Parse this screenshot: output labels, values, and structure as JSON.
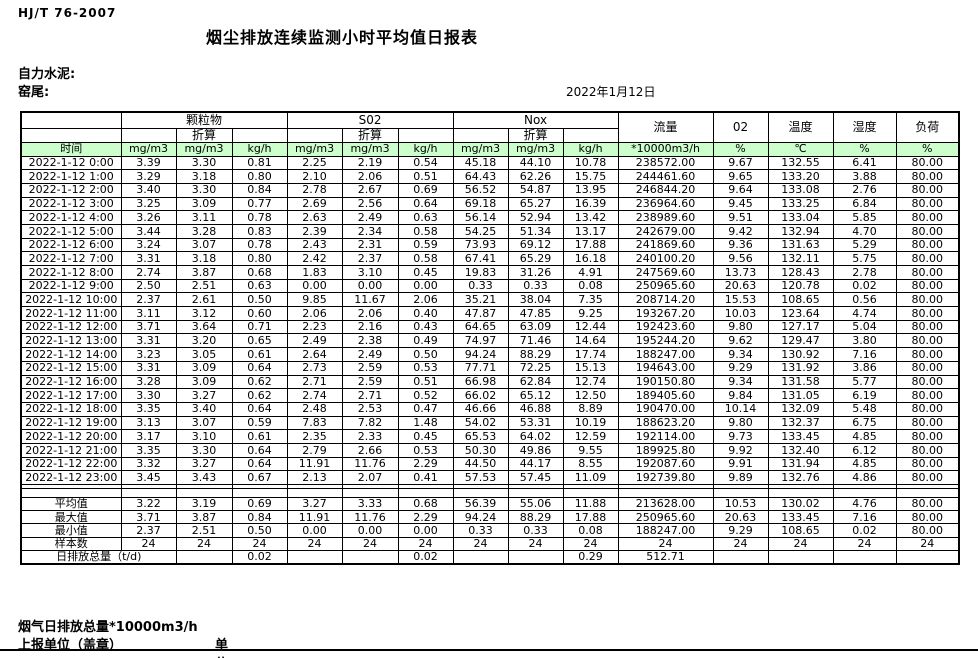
{
  "doc": {
    "standard": "HJ/T 76-2007",
    "title": "烟尘排放连续监测小时平均值日报表",
    "company": "自力水泥:",
    "location": "窑尾:",
    "date": "2022年1月12日"
  },
  "table": {
    "groups": [
      "颗粒物",
      "S02",
      "Nox"
    ],
    "conv_label": "折算",
    "time_header": "时间",
    "col_headers": {
      "flow": "流量",
      "o2": "02",
      "temp": "温度",
      "humidity": "湿度",
      "load": "负荷"
    },
    "units": [
      "mg/m3",
      "mg/m3",
      "kg/h",
      "mg/m3",
      "mg/m3",
      "kg/h",
      "mg/m3",
      "mg/m3",
      "kg/h",
      "*10000m3/h",
      "%",
      "℃",
      "%",
      "%"
    ],
    "rows": [
      {
        "time": "2022-1-12 0:00",
        "values": [
          "3.39",
          "3.30",
          "0.81",
          "2.25",
          "2.19",
          "0.54",
          "45.18",
          "44.10",
          "10.78",
          "238572.00",
          "9.67",
          "132.55",
          "6.41",
          "80.00"
        ]
      },
      {
        "time": "2022-1-12 1:00",
        "values": [
          "3.29",
          "3.18",
          "0.80",
          "2.10",
          "2.06",
          "0.51",
          "64.43",
          "62.26",
          "15.75",
          "244461.60",
          "9.65",
          "133.20",
          "3.88",
          "80.00"
        ]
      },
      {
        "time": "2022-1-12 2:00",
        "values": [
          "3.40",
          "3.30",
          "0.84",
          "2.78",
          "2.67",
          "0.69",
          "56.52",
          "54.87",
          "13.95",
          "246844.20",
          "9.64",
          "133.08",
          "2.76",
          "80.00"
        ]
      },
      {
        "time": "2022-1-12 3:00",
        "values": [
          "3.25",
          "3.09",
          "0.77",
          "2.69",
          "2.56",
          "0.64",
          "69.18",
          "65.27",
          "16.39",
          "236964.60",
          "9.45",
          "133.25",
          "6.84",
          "80.00"
        ]
      },
      {
        "time": "2022-1-12 4:00",
        "values": [
          "3.26",
          "3.11",
          "0.78",
          "2.63",
          "2.49",
          "0.63",
          "56.14",
          "52.94",
          "13.42",
          "238989.60",
          "9.51",
          "133.04",
          "5.85",
          "80.00"
        ]
      },
      {
        "time": "2022-1-12 5:00",
        "values": [
          "3.44",
          "3.28",
          "0.83",
          "2.39",
          "2.34",
          "0.58",
          "54.25",
          "51.34",
          "13.17",
          "242679.00",
          "9.42",
          "132.94",
          "4.70",
          "80.00"
        ]
      },
      {
        "time": "2022-1-12 6:00",
        "values": [
          "3.24",
          "3.07",
          "0.78",
          "2.43",
          "2.31",
          "0.59",
          "73.93",
          "69.12",
          "17.88",
          "241869.60",
          "9.36",
          "131.63",
          "5.29",
          "80.00"
        ]
      },
      {
        "time": "2022-1-12 7:00",
        "values": [
          "3.31",
          "3.18",
          "0.80",
          "2.42",
          "2.37",
          "0.58",
          "67.41",
          "65.29",
          "16.18",
          "240100.20",
          "9.56",
          "132.11",
          "5.75",
          "80.00"
        ]
      },
      {
        "time": "2022-1-12 8:00",
        "values": [
          "2.74",
          "3.87",
          "0.68",
          "1.83",
          "3.10",
          "0.45",
          "19.83",
          "31.26",
          "4.91",
          "247569.60",
          "13.73",
          "128.43",
          "2.78",
          "80.00"
        ]
      },
      {
        "time": "2022-1-12 9:00",
        "values": [
          "2.50",
          "2.51",
          "0.63",
          "0.00",
          "0.00",
          "0.00",
          "0.33",
          "0.33",
          "0.08",
          "250965.60",
          "20.63",
          "120.78",
          "0.02",
          "80.00"
        ]
      },
      {
        "time": "2022-1-12 10:00",
        "values": [
          "2.37",
          "2.61",
          "0.50",
          "9.85",
          "11.67",
          "2.06",
          "35.21",
          "38.04",
          "7.35",
          "208714.20",
          "15.53",
          "108.65",
          "0.56",
          "80.00"
        ]
      },
      {
        "time": "2022-1-12 11:00",
        "values": [
          "3.11",
          "3.12",
          "0.60",
          "2.06",
          "2.06",
          "0.40",
          "47.87",
          "47.85",
          "9.25",
          "193267.20",
          "10.03",
          "123.64",
          "4.74",
          "80.00"
        ]
      },
      {
        "time": "2022-1-12 12:00",
        "values": [
          "3.71",
          "3.64",
          "0.71",
          "2.23",
          "2.16",
          "0.43",
          "64.65",
          "63.09",
          "12.44",
          "192423.60",
          "9.80",
          "127.17",
          "5.04",
          "80.00"
        ]
      },
      {
        "time": "2022-1-12 13:00",
        "values": [
          "3.31",
          "3.20",
          "0.65",
          "2.49",
          "2.38",
          "0.49",
          "74.97",
          "71.46",
          "14.64",
          "195244.20",
          "9.62",
          "129.47",
          "3.80",
          "80.00"
        ]
      },
      {
        "time": "2022-1-12 14:00",
        "values": [
          "3.23",
          "3.05",
          "0.61",
          "2.64",
          "2.49",
          "0.50",
          "94.24",
          "88.29",
          "17.74",
          "188247.00",
          "9.34",
          "130.92",
          "7.16",
          "80.00"
        ]
      },
      {
        "time": "2022-1-12 15:00",
        "values": [
          "3.31",
          "3.09",
          "0.64",
          "2.73",
          "2.59",
          "0.53",
          "77.71",
          "72.25",
          "15.13",
          "194643.00",
          "9.29",
          "131.92",
          "3.86",
          "80.00"
        ]
      },
      {
        "time": "2022-1-12 16:00",
        "values": [
          "3.28",
          "3.09",
          "0.62",
          "2.71",
          "2.59",
          "0.51",
          "66.98",
          "62.84",
          "12.74",
          "190150.80",
          "9.34",
          "131.58",
          "5.77",
          "80.00"
        ]
      },
      {
        "time": "2022-1-12 17:00",
        "values": [
          "3.30",
          "3.27",
          "0.62",
          "2.74",
          "2.71",
          "0.52",
          "66.02",
          "65.12",
          "12.50",
          "189405.60",
          "9.84",
          "131.05",
          "6.19",
          "80.00"
        ]
      },
      {
        "time": "2022-1-12 18:00",
        "values": [
          "3.35",
          "3.40",
          "0.64",
          "2.48",
          "2.53",
          "0.47",
          "46.66",
          "46.88",
          "8.89",
          "190470.00",
          "10.14",
          "132.09",
          "5.48",
          "80.00"
        ]
      },
      {
        "time": "2022-1-12 19:00",
        "values": [
          "3.13",
          "3.07",
          "0.59",
          "7.83",
          "7.82",
          "1.48",
          "54.02",
          "53.31",
          "10.19",
          "188623.20",
          "9.80",
          "132.37",
          "6.75",
          "80.00"
        ]
      },
      {
        "time": "2022-1-12 20:00",
        "values": [
          "3.17",
          "3.10",
          "0.61",
          "2.35",
          "2.33",
          "0.45",
          "65.53",
          "64.02",
          "12.59",
          "192114.00",
          "9.73",
          "133.45",
          "4.85",
          "80.00"
        ]
      },
      {
        "time": "2022-1-12 21:00",
        "values": [
          "3.35",
          "3.30",
          "0.64",
          "2.79",
          "2.66",
          "0.53",
          "50.30",
          "49.86",
          "9.55",
          "189925.80",
          "9.92",
          "132.40",
          "6.12",
          "80.00"
        ]
      },
      {
        "time": "2022-1-12 22:00",
        "values": [
          "3.32",
          "3.27",
          "0.64",
          "11.91",
          "11.76",
          "2.29",
          "44.50",
          "44.17",
          "8.55",
          "192087.60",
          "9.91",
          "131.94",
          "4.85",
          "80.00"
        ]
      },
      {
        "time": "2022-1-12 23:00",
        "values": [
          "3.45",
          "3.43",
          "0.67",
          "2.13",
          "2.07",
          "0.41",
          "57.53",
          "57.45",
          "11.09",
          "192739.80",
          "9.89",
          "132.76",
          "4.86",
          "80.00"
        ]
      }
    ],
    "summary_rows": [
      {
        "label": "平均值",
        "values": [
          "3.22",
          "3.19",
          "0.69",
          "3.27",
          "3.33",
          "0.68",
          "56.39",
          "55.06",
          "11.88",
          "213628.00",
          "10.53",
          "130.02",
          "4.76",
          "80.00"
        ]
      },
      {
        "label": "最大值",
        "values": [
          "3.71",
          "3.87",
          "0.84",
          "11.91",
          "11.76",
          "2.29",
          "94.24",
          "88.29",
          "17.88",
          "250965.60",
          "20.63",
          "133.45",
          "7.16",
          "80.00"
        ]
      },
      {
        "label": "最小值",
        "values": [
          "2.37",
          "2.51",
          "0.50",
          "0.00",
          "0.00",
          "0.00",
          "0.33",
          "0.33",
          "0.08",
          "188247.00",
          "9.29",
          "108.65",
          "0.02",
          "80.00"
        ]
      },
      {
        "label": "样本数",
        "values": [
          "24",
          "24",
          "24",
          "24",
          "24",
          "24",
          "24",
          "24",
          "24",
          "24",
          "24",
          "24",
          "24",
          "24"
        ]
      }
    ],
    "daily_total_row": {
      "label": "日排放总量（t/d)",
      "values": [
        "",
        "0.02",
        "",
        "",
        "0.02",
        "",
        "",
        "0.29",
        "512.71",
        "",
        "",
        "",
        ""
      ]
    }
  },
  "footer": {
    "flue_gas_note": "烟气日排放总量*10000m3/h",
    "reporting_unit": "上报单位（盖章）",
    "unit": "单位"
  },
  "colors": {
    "header_green": "#ccffcc"
  }
}
